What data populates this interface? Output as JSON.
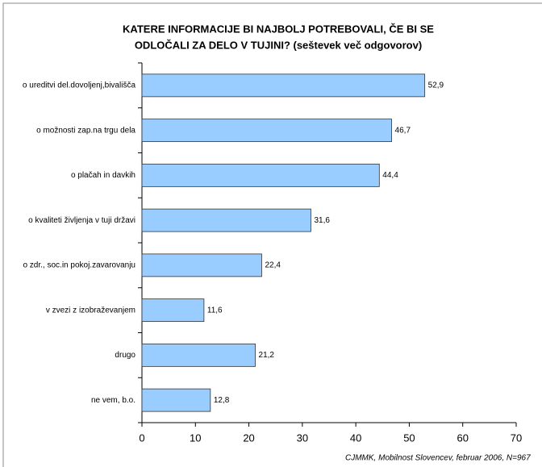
{
  "chart_data": {
    "type": "bar",
    "orientation": "horizontal",
    "title": [
      "KATERE INFORMACIJE BI NAJBOLJ POTREBOVALI, ČE BI SE",
      "ODLOČALI ZA DELO V TUJINI? (seštevek več odgovorov)"
    ],
    "categories": [
      "o ureditvi del.dovoljenj,bivališča",
      "o možnosti zap.na trgu dela",
      "o plačah in davkih",
      "o kvaliteti življenja v tuji državi",
      "o zdr., soc.in pokoj.zavarovanju",
      "v zvezi z izobraževanjem",
      "drugo",
      "ne vem, b.o."
    ],
    "values": [
      52.9,
      46.7,
      44.4,
      31.6,
      22.4,
      11.6,
      21.2,
      12.8
    ],
    "value_labels": [
      "52,9",
      "46,7",
      "44,4",
      "31,6",
      "22,4",
      "11,6",
      "21,2",
      "12,8"
    ],
    "color": "#99ccff",
    "xlim": [
      0,
      70
    ],
    "xticks": [
      0,
      10,
      20,
      30,
      40,
      50,
      60,
      70
    ],
    "grid": false,
    "note": "CJMMK, Mobilnost Slovencev, februar 2006, N=967"
  }
}
